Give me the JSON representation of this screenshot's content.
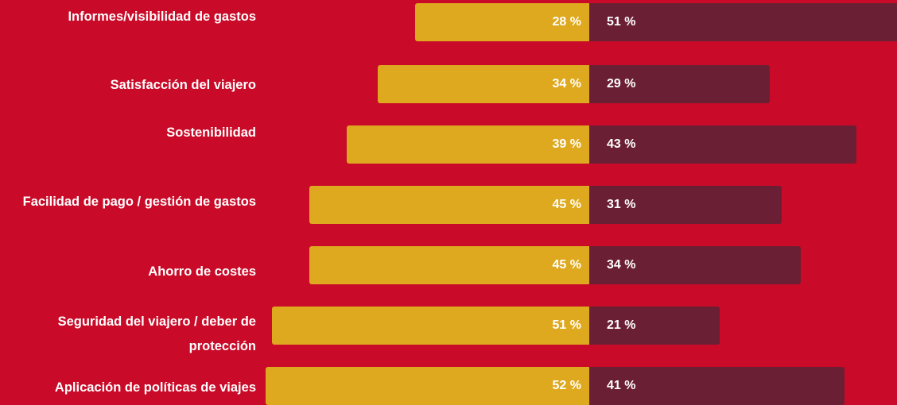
{
  "chart_data": {
    "type": "bar",
    "orientation": "horizontal-diverging",
    "unit": "%",
    "categories": [
      "Informes/visibilidad de gastos",
      "Satisfacción del viajero",
      "Sostenibilidad",
      "Facilidad de pago / gestión de gastos",
      "Ahorro de costes",
      "Seguridad del viajero / deber de protección",
      "Aplicación de políticas de viajes"
    ],
    "series": [
      {
        "values": [
          28,
          34,
          39,
          45,
          45,
          51,
          52
        ],
        "labels": [
          "28 %",
          "34 %",
          "39 %",
          "45 %",
          "45 %",
          "51 %",
          "52 %"
        ],
        "color": "#dea91e",
        "side": "left"
      },
      {
        "values": [
          51,
          29,
          43,
          31,
          34,
          21,
          41
        ],
        "labels": [
          "51 %",
          "29 %",
          "43 %",
          "31 %",
          "34 %",
          "21 %",
          "41 %"
        ],
        "color": "#6b1f34",
        "side": "right"
      }
    ]
  },
  "colors": {
    "background": "#c90a28",
    "left_bar": "#dea91e",
    "right_bar": "#6b1f34",
    "text": "#ffffff"
  }
}
